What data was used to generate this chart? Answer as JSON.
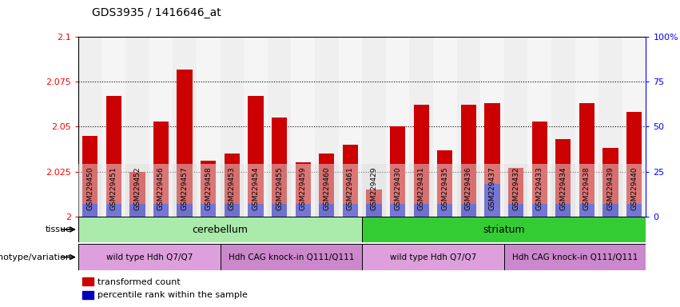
{
  "title": "GDS3935 / 1416646_at",
  "samples": [
    "GSM229450",
    "GSM229451",
    "GSM229452",
    "GSM229456",
    "GSM229457",
    "GSM229458",
    "GSM229453",
    "GSM229454",
    "GSM229455",
    "GSM229459",
    "GSM229460",
    "GSM229461",
    "GSM229429",
    "GSM229430",
    "GSM229431",
    "GSM229435",
    "GSM229436",
    "GSM229437",
    "GSM229432",
    "GSM229433",
    "GSM229434",
    "GSM229438",
    "GSM229439",
    "GSM229440"
  ],
  "red_values": [
    2.045,
    2.067,
    2.025,
    2.053,
    2.082,
    2.031,
    2.035,
    2.067,
    2.055,
    2.03,
    2.035,
    2.04,
    2.015,
    2.05,
    2.062,
    2.037,
    2.062,
    2.063,
    2.027,
    2.053,
    2.043,
    2.063,
    2.038,
    2.058
  ],
  "blue_values": [
    7,
    7,
    7,
    7,
    7,
    7,
    7,
    7,
    7,
    7,
    7,
    7,
    7,
    7,
    7,
    7,
    7,
    18,
    7,
    7,
    7,
    7,
    7,
    7
  ],
  "ymin": 2.0,
  "ymax": 2.1,
  "yticks": [
    2.0,
    2.025,
    2.05,
    2.075,
    2.1
  ],
  "ytick_labels": [
    "2",
    "2.025",
    "2.05",
    "2.075",
    "2.1"
  ],
  "right_yticks": [
    0,
    25,
    50,
    75,
    100
  ],
  "right_ytick_labels": [
    "0",
    "25",
    "50",
    "75",
    "100%"
  ],
  "dotted_lines": [
    2.025,
    2.05,
    2.075
  ],
  "tissue_groups": [
    {
      "label": "cerebellum",
      "start": 0,
      "end": 12,
      "color": "#aaeaaa"
    },
    {
      "label": "striatum",
      "start": 12,
      "end": 24,
      "color": "#33cc33"
    }
  ],
  "genotype_groups": [
    {
      "label": "wild type Hdh Q7/Q7",
      "start": 0,
      "end": 6
    },
    {
      "label": "Hdh CAG knock-in Q111/Q111",
      "start": 6,
      "end": 12
    },
    {
      "label": "wild type Hdh Q7/Q7",
      "start": 12,
      "end": 18
    },
    {
      "label": "Hdh CAG knock-in Q111/Q111",
      "start": 18,
      "end": 24
    }
  ],
  "genotype_colors": [
    "#dda0dd",
    "#cc88cc",
    "#dda0dd",
    "#cc88cc"
  ],
  "red_color": "#cc0000",
  "blue_color": "#0000bb",
  "bar_width": 0.65,
  "tissue_label": "tissue",
  "genotype_label": "genotype/variation",
  "legend_red": "transformed count",
  "legend_blue": "percentile rank within the sample"
}
